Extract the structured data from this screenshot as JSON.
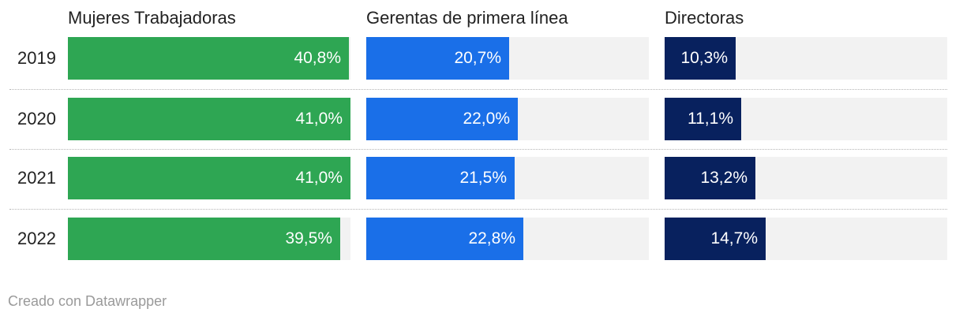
{
  "chart_data": {
    "type": "bar",
    "orientation": "horizontal",
    "categories": [
      "2019",
      "2020",
      "2021",
      "2022"
    ],
    "series": [
      {
        "name": "Mujeres Trabajadoras",
        "values": [
          40.8,
          41.0,
          41.0,
          39.5
        ],
        "labels": [
          "40,8%",
          "41,0%",
          "41,0%",
          "39,5%"
        ],
        "color": "#2ea653"
      },
      {
        "name": "Gerentas de primera línea",
        "values": [
          20.7,
          22.0,
          21.5,
          22.8
        ],
        "labels": [
          "20,7%",
          "22,0%",
          "21,5%",
          "22,8%"
        ],
        "color": "#1a6fe8"
      },
      {
        "name": "Directoras",
        "values": [
          10.3,
          11.1,
          13.2,
          14.7
        ],
        "labels": [
          "10,3%",
          "11,1%",
          "13,2%",
          "14,7%"
        ],
        "color": "#08215e"
      }
    ],
    "xlim": [
      0,
      41
    ],
    "background_color": "#f2f2f2",
    "grid": false
  },
  "footer": "Creado con Datawrapper"
}
